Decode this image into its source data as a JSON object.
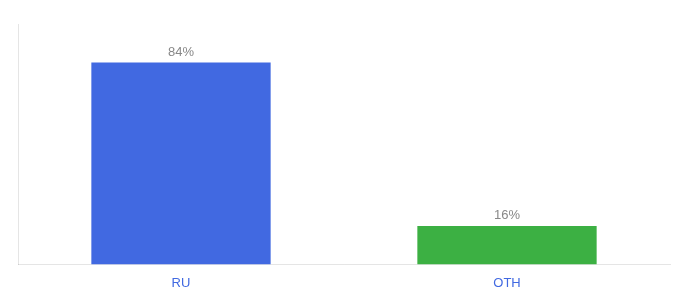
{
  "chart_data": {
    "type": "bar",
    "categories": [
      "RU",
      "OTH"
    ],
    "values": [
      84,
      16
    ],
    "value_labels": [
      "84%",
      "16%"
    ],
    "colors": [
      "#4169e1",
      "#3cb043"
    ],
    "ylim": [
      0,
      100
    ],
    "grid": false,
    "data_labels": true,
    "tick_labels": "x"
  }
}
